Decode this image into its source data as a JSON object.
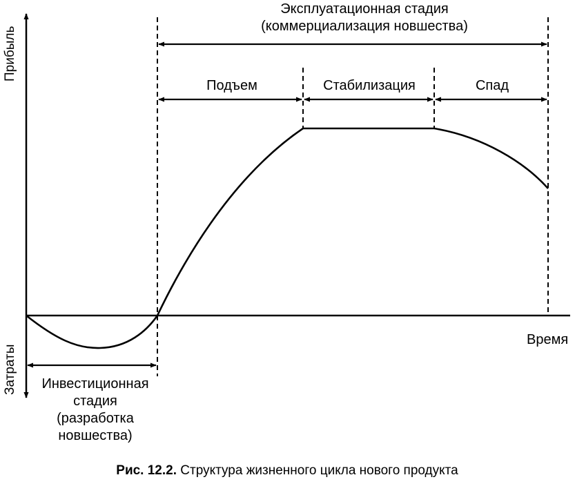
{
  "axes": {
    "y_positive": "Прибыль",
    "y_negative": "Затраты",
    "x": "Время"
  },
  "stages": {
    "operational": {
      "line1": "Эксплуатационная стадия",
      "line2": "(коммерциализация новшества)"
    },
    "rise": "Подъем",
    "stabilization": "Стабилизация",
    "decline": "Спад",
    "investment": {
      "line1": "Инвестиционная",
      "line2": "стадия",
      "line3": "(разработка",
      "line4": "новшества)"
    }
  },
  "caption": {
    "number": "Рис. 12.2.",
    "text": " Структура жизненного цикла нового продукта"
  }
}
